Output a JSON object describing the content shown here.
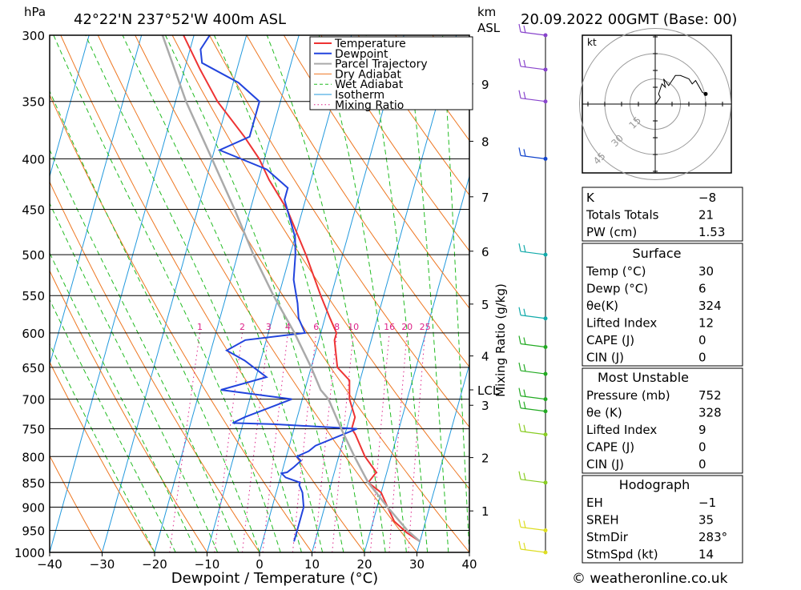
{
  "header": {
    "hpa_unit": "hPa",
    "location": "42°22'N 237°52'W 400m ASL",
    "km_unit": "km",
    "asl_unit": "ASL",
    "datetime": "20.09.2022 00GMT (Base: 00)"
  },
  "footer": {
    "copyright": "© weatheronline.co.uk"
  },
  "colors": {
    "temperature": "#ee3333",
    "dewpoint": "#2244dd",
    "parcel": "#aaaaaa",
    "dry_adiabat": "#ee7722",
    "wet_adiabat": "#22bb22",
    "isotherm": "#2299dd",
    "mixing_ratio": "#dd2288"
  },
  "chart_data": {
    "type": "line",
    "title": "42°22'N 237°52'W 400m ASL",
    "xlabel": "Dewpoint / Temperature (°C)",
    "ylabel": "hPa",
    "xlim": [
      -40,
      40
    ],
    "x_ticks": [
      "−40",
      "−30",
      "−20",
      "−10",
      "0",
      "10",
      "20",
      "30",
      "40"
    ],
    "pressure_levels": [
      300,
      350,
      400,
      450,
      500,
      550,
      600,
      650,
      700,
      750,
      800,
      850,
      900,
      950,
      1000
    ],
    "height_km_ticks": [
      {
        "label": "1",
        "p": 908
      },
      {
        "label": "2",
        "p": 802
      },
      {
        "label": "3",
        "p": 710
      },
      {
        "label": "4",
        "p": 633
      },
      {
        "label": "5",
        "p": 561
      },
      {
        "label": "6",
        "p": 496
      },
      {
        "label": "7",
        "p": 437
      },
      {
        "label": "8",
        "p": 384
      },
      {
        "label": "9",
        "p": 336
      }
    ],
    "lcl_label": "LCL",
    "lcl_p": 685,
    "mixing_ratio_axis_label": "Mixing Ratio (g/kg)",
    "mixing_ratio_labels": [
      "1",
      "2",
      "3",
      "4",
      "6",
      "8",
      "10",
      "16",
      "20",
      "25"
    ],
    "legend": [
      "Temperature",
      "Dewpoint",
      "Parcel Trajectory",
      "Dry Adiabat",
      "Wet Adiabat",
      "Isotherm",
      "Mixing Ratio"
    ],
    "series": [
      {
        "name": "Temperature",
        "points": [
          [
            975,
            30
          ],
          [
            955,
            27
          ],
          [
            930,
            24
          ],
          [
            900,
            22
          ],
          [
            870,
            20
          ],
          [
            850,
            17
          ],
          [
            830,
            18
          ],
          [
            800,
            15
          ],
          [
            760,
            12
          ],
          [
            750,
            11
          ],
          [
            730,
            11
          ],
          [
            700,
            9
          ],
          [
            670,
            8
          ],
          [
            650,
            5
          ],
          [
            630,
            4
          ],
          [
            610,
            3
          ],
          [
            600,
            3
          ],
          [
            580,
            1
          ],
          [
            550,
            -2
          ],
          [
            500,
            -7
          ],
          [
            450,
            -13
          ],
          [
            420,
            -18
          ],
          [
            400,
            -21
          ],
          [
            380,
            -25
          ],
          [
            350,
            -32
          ],
          [
            325,
            -37
          ],
          [
            300,
            -42
          ]
        ]
      },
      {
        "name": "Dewpoint",
        "points": [
          [
            975,
            6
          ],
          [
            950,
            6
          ],
          [
            900,
            6
          ],
          [
            870,
            5
          ],
          [
            855,
            4
          ],
          [
            850,
            4
          ],
          [
            840,
            1
          ],
          [
            832,
            0
          ],
          [
            830,
            1
          ],
          [
            820,
            2
          ],
          [
            808,
            3
          ],
          [
            800,
            2
          ],
          [
            790,
            4
          ],
          [
            780,
            5
          ],
          [
            750,
            12
          ],
          [
            742,
            -4
          ],
          [
            740,
            -12
          ],
          [
            730,
            -10
          ],
          [
            700,
            -2
          ],
          [
            685,
            -16
          ],
          [
            665,
            -8
          ],
          [
            640,
            -13
          ],
          [
            625,
            -17
          ],
          [
            610,
            -14
          ],
          [
            600,
            -3
          ],
          [
            580,
            -5
          ],
          [
            560,
            -6
          ],
          [
            530,
            -8
          ],
          [
            500,
            -9
          ],
          [
            480,
            -10
          ],
          [
            440,
            -14
          ],
          [
            428,
            -14
          ],
          [
            410,
            -19
          ],
          [
            392,
            -29
          ],
          [
            380,
            -24
          ],
          [
            350,
            -24
          ],
          [
            335,
            -29
          ],
          [
            320,
            -37
          ],
          [
            310,
            -38
          ],
          [
            300,
            -37
          ]
        ]
      },
      {
        "name": "Parcel Trajectory",
        "points": [
          [
            975,
            30
          ],
          [
            950,
            27
          ],
          [
            900,
            22
          ],
          [
            850,
            17
          ],
          [
            800,
            13
          ],
          [
            750,
            9
          ],
          [
            700,
            5
          ],
          [
            685,
            3
          ],
          [
            650,
            0
          ],
          [
            600,
            -5
          ],
          [
            550,
            -11
          ],
          [
            500,
            -17
          ],
          [
            450,
            -23
          ],
          [
            400,
            -30
          ],
          [
            350,
            -38
          ],
          [
            300,
            -46
          ]
        ]
      }
    ]
  },
  "wind_profile_levels": [
    300,
    325,
    350,
    400,
    500,
    580,
    620,
    660,
    700,
    720,
    760,
    850,
    950,
    1000
  ],
  "hodograph": {
    "unit_label": "kt",
    "ring_labels": [
      "15",
      "30",
      "45"
    ],
    "path": [
      [
        0,
        0
      ],
      [
        1,
        1
      ],
      [
        3,
        4
      ],
      [
        2,
        6
      ],
      [
        4,
        12
      ],
      [
        6,
        10
      ],
      [
        5,
        15
      ],
      [
        8,
        11
      ],
      [
        10,
        14
      ],
      [
        12,
        17
      ],
      [
        15,
        17
      ],
      [
        20,
        15
      ],
      [
        22,
        12
      ],
      [
        24,
        14
      ],
      [
        28,
        7
      ],
      [
        30,
        6
      ]
    ]
  },
  "indices": [
    {
      "label": "K",
      "value": "−8"
    },
    {
      "label": "Totals Totals",
      "value": "21"
    },
    {
      "label": "PW (cm)",
      "value": "1.53"
    }
  ],
  "surface": {
    "heading": "Surface",
    "rows": [
      {
        "label": "Temp (°C)",
        "value": "30"
      },
      {
        "label": "Dewp (°C)",
        "value": "6"
      },
      {
        "label": "θe(K)",
        "value": "324"
      },
      {
        "label": "Lifted Index",
        "value": "12"
      },
      {
        "label": "CAPE (J)",
        "value": "0"
      },
      {
        "label": "CIN (J)",
        "value": "0"
      }
    ]
  },
  "most_unstable": {
    "heading": "Most Unstable",
    "rows": [
      {
        "label": "Pressure (mb)",
        "value": "752"
      },
      {
        "label": "θe (K)",
        "value": "328"
      },
      {
        "label": "Lifted Index",
        "value": "9"
      },
      {
        "label": "CAPE (J)",
        "value": "0"
      },
      {
        "label": "CIN (J)",
        "value": "0"
      }
    ]
  },
  "hodograph_table": {
    "heading": "Hodograph",
    "rows": [
      {
        "label": "EH",
        "value": "−1"
      },
      {
        "label": "SREH",
        "value": "35"
      },
      {
        "label": "StmDir",
        "value": "283°"
      },
      {
        "label": "StmSpd (kt)",
        "value": "14"
      }
    ]
  }
}
